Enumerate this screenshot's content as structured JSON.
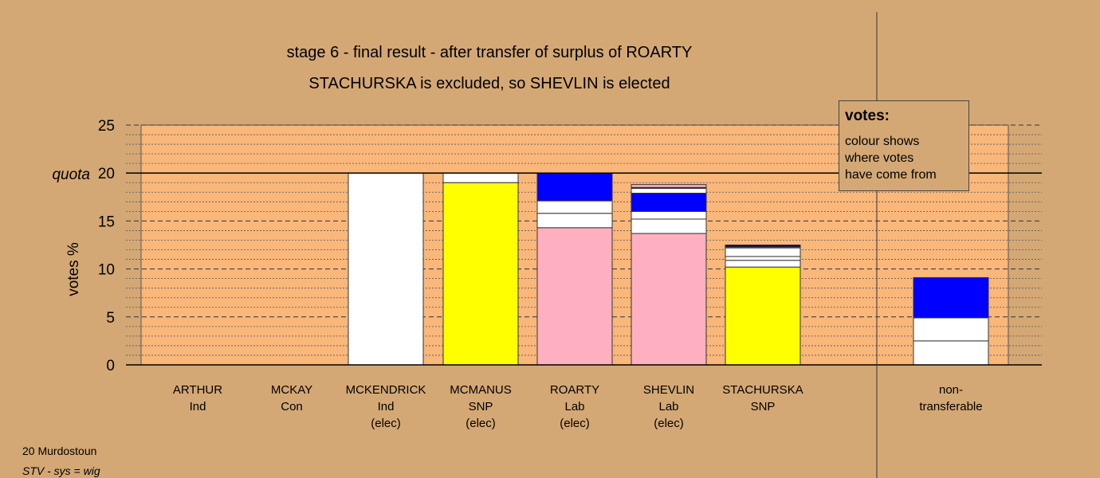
{
  "chart_data": {
    "type": "bar",
    "stacked": true,
    "title": "stage 6 - final result - after transfer of surplus of ROARTY",
    "subtitle": "STACHURSKA is excluded, so SHEVLIN is elected",
    "ylabel": "votes %",
    "ylim": [
      0,
      25
    ],
    "yticks": [
      0,
      5,
      10,
      15,
      20,
      25
    ],
    "quota": 20,
    "quota_label": "quota",
    "categories": [
      {
        "line1": "ARTHUR",
        "line2": "Ind",
        "line3": ""
      },
      {
        "line1": "MCKAY",
        "line2": "Con",
        "line3": ""
      },
      {
        "line1": "MCKENDRICK",
        "line2": "Ind",
        "line3": "(elec)"
      },
      {
        "line1": "MCMANUS",
        "line2": "SNP",
        "line3": "(elec)"
      },
      {
        "line1": "ROARTY",
        "line2": "Lab",
        "line3": "(elec)"
      },
      {
        "line1": "SHEVLIN",
        "line2": "Lab",
        "line3": "(elec)"
      },
      {
        "line1": "STACHURSKA",
        "line2": "SNP",
        "line3": ""
      },
      {
        "line1": "non-",
        "line2": "transferable",
        "line3": ""
      }
    ],
    "stacks": [
      [],
      [],
      [
        {
          "value": 20.0,
          "color": "#ffffff"
        }
      ],
      [
        {
          "value": 19.0,
          "color": "#ffff00"
        },
        {
          "value": 1.0,
          "color": "#ffffff"
        }
      ],
      [
        {
          "value": 14.3,
          "color": "#ffb0c0"
        },
        {
          "value": 1.5,
          "color": "#ffffff"
        },
        {
          "value": 1.3,
          "color": "#ffffff"
        },
        {
          "value": 2.9,
          "color": "#0000ff"
        }
      ],
      [
        {
          "value": 13.7,
          "color": "#ffb0c0"
        },
        {
          "value": 1.5,
          "color": "#ffffff"
        },
        {
          "value": 0.8,
          "color": "#ffffff"
        },
        {
          "value": 1.9,
          "color": "#0000ff"
        },
        {
          "value": 0.5,
          "color": "#ffffff"
        },
        {
          "value": 0.1,
          "color": "#0000ff"
        },
        {
          "value": 0.3,
          "color": "#ffb0c0"
        }
      ],
      [
        {
          "value": 10.2,
          "color": "#ffff00"
        },
        {
          "value": 0.7,
          "color": "#ffffff"
        },
        {
          "value": 0.4,
          "color": "#ffffff"
        },
        {
          "value": 0.9,
          "color": "#ffffff"
        },
        {
          "value": 0.1,
          "color": "#ffb0c0"
        },
        {
          "value": 0.2,
          "color": "#000060"
        }
      ],
      [
        {
          "value": 2.5,
          "color": "#ffffff"
        },
        {
          "value": 2.4,
          "color": "#ffffff"
        },
        {
          "value": 4.2,
          "color": "#0000ff"
        }
      ]
    ],
    "grid": true
  },
  "legend": {
    "title": "votes:",
    "lines": [
      "colour shows",
      "where votes",
      "have come from"
    ]
  },
  "footer": {
    "ward": "20 Murdostoun",
    "system": "STV - sys = wig"
  },
  "colors": {
    "background": "#d4a874",
    "plot_area": "#f9b77a",
    "blue": "#0000ff",
    "yellow": "#ffff00",
    "pink": "#ffb0c0",
    "white": "#ffffff"
  }
}
